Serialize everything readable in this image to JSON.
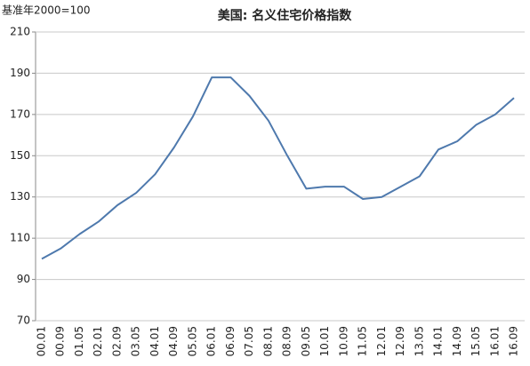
{
  "chart_data": {
    "type": "line",
    "title": "美国: 名义住宅价格指数",
    "y_label": "基准年2000=100",
    "categories": [
      "00.01",
      "00.09",
      "01.05",
      "02.01",
      "02.09",
      "03.05",
      "04.01",
      "04.09",
      "05.05",
      "06.01",
      "06.09",
      "07.05",
      "08.01",
      "08.09",
      "09.05",
      "10.01",
      "10.09",
      "11.05",
      "12.01",
      "12.09",
      "13.05",
      "14.01",
      "14.09",
      "15.05",
      "16.01",
      "16.09"
    ],
    "values": [
      100,
      105,
      112,
      118,
      126,
      132,
      141,
      154,
      169,
      188,
      188,
      179,
      167,
      150,
      134,
      135,
      135,
      129,
      130,
      135,
      140,
      153,
      157,
      165,
      170,
      178
    ],
    "color": "#4e79ad",
    "ylim": [
      70,
      210
    ],
    "yticks": [
      70,
      90,
      110,
      130,
      150,
      170,
      190,
      210
    ],
    "grid": true
  }
}
